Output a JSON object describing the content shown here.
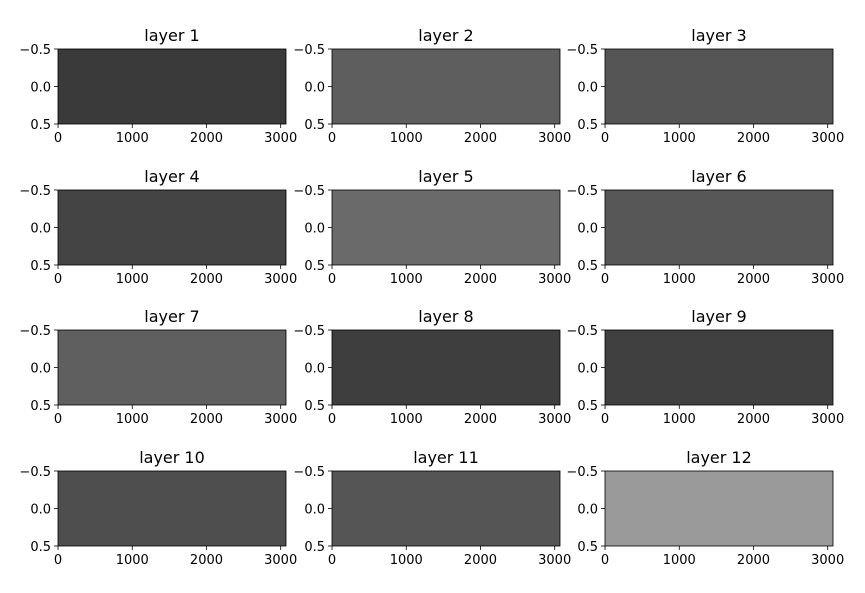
{
  "chart_data": [
    {
      "type": "heatmap",
      "title": "layer 1",
      "color": "#3a3a3a",
      "xlim": [
        -0.5,
        3071.5
      ],
      "ylim": [
        -0.5,
        0.5
      ],
      "y_inverted": true,
      "xticks": [
        0,
        1000,
        2000,
        3000
      ],
      "yticks": [
        {
          "value": -0.5,
          "label": "−0.5"
        },
        {
          "value": 0,
          "label": "0.0"
        },
        0.5
      ]
    },
    {
      "type": "heatmap",
      "title": "layer 2",
      "color": "#5e5e5e",
      "xlim": [
        -0.5,
        3071.5
      ],
      "ylim": [
        -0.5,
        0.5
      ],
      "y_inverted": true,
      "xticks": [
        0,
        1000,
        2000,
        3000
      ],
      "yticks": [
        {
          "value": -0.5,
          "label": "−0.5"
        },
        {
          "value": 0,
          "label": "0.0"
        },
        0.5
      ]
    },
    {
      "type": "heatmap",
      "title": "layer 3",
      "color": "#555555",
      "xlim": [
        -0.5,
        3071.5
      ],
      "ylim": [
        -0.5,
        0.5
      ],
      "y_inverted": true,
      "xticks": [
        0,
        1000,
        2000,
        3000
      ],
      "yticks": [
        {
          "value": -0.5,
          "label": "−0.5"
        },
        {
          "value": 0,
          "label": "0.0"
        },
        0.5
      ]
    },
    {
      "type": "heatmap",
      "title": "layer 4",
      "color": "#444444",
      "xlim": [
        -0.5,
        3071.5
      ],
      "ylim": [
        -0.5,
        0.5
      ],
      "y_inverted": true,
      "xticks": [
        0,
        1000,
        2000,
        3000
      ],
      "yticks": [
        {
          "value": -0.5,
          "label": "−0.5"
        },
        {
          "value": 0,
          "label": "0.0"
        },
        0.5
      ]
    },
    {
      "type": "heatmap",
      "title": "layer 5",
      "color": "#6a6a6a",
      "xlim": [
        -0.5,
        3071.5
      ],
      "ylim": [
        -0.5,
        0.5
      ],
      "y_inverted": true,
      "xticks": [
        0,
        1000,
        2000,
        3000
      ],
      "yticks": [
        {
          "value": -0.5,
          "label": "−0.5"
        },
        {
          "value": 0,
          "label": "0.0"
        },
        0.5
      ]
    },
    {
      "type": "heatmap",
      "title": "layer 6",
      "color": "#575757",
      "xlim": [
        -0.5,
        3071.5
      ],
      "ylim": [
        -0.5,
        0.5
      ],
      "y_inverted": true,
      "xticks": [
        0,
        1000,
        2000,
        3000
      ],
      "yticks": [
        {
          "value": -0.5,
          "label": "−0.5"
        },
        {
          "value": 0,
          "label": "0.0"
        },
        0.5
      ]
    },
    {
      "type": "heatmap",
      "title": "layer 7",
      "color": "#5f5f5f",
      "xlim": [
        -0.5,
        3071.5
      ],
      "ylim": [
        -0.5,
        0.5
      ],
      "y_inverted": true,
      "xticks": [
        0,
        1000,
        2000,
        3000
      ],
      "yticks": [
        {
          "value": -0.5,
          "label": "−0.5"
        },
        {
          "value": 0,
          "label": "0.0"
        },
        0.5
      ]
    },
    {
      "type": "heatmap",
      "title": "layer 8",
      "color": "#3e3e3e",
      "xlim": [
        -0.5,
        3071.5
      ],
      "ylim": [
        -0.5,
        0.5
      ],
      "y_inverted": true,
      "xticks": [
        0,
        1000,
        2000,
        3000
      ],
      "yticks": [
        {
          "value": -0.5,
          "label": "−0.5"
        },
        {
          "value": 0,
          "label": "0.0"
        },
        0.5
      ]
    },
    {
      "type": "heatmap",
      "title": "layer 9",
      "color": "#404040",
      "xlim": [
        -0.5,
        3071.5
      ],
      "ylim": [
        -0.5,
        0.5
      ],
      "y_inverted": true,
      "xticks": [
        0,
        1000,
        2000,
        3000
      ],
      "yticks": [
        {
          "value": -0.5,
          "label": "−0.5"
        },
        {
          "value": 0,
          "label": "0.0"
        },
        0.5
      ]
    },
    {
      "type": "heatmap",
      "title": "layer 10",
      "color": "#4e4e4e",
      "xlim": [
        -0.5,
        3071.5
      ],
      "ylim": [
        -0.5,
        0.5
      ],
      "y_inverted": true,
      "xticks": [
        0,
        1000,
        2000,
        3000
      ],
      "yticks": [
        {
          "value": -0.5,
          "label": "−0.5"
        },
        {
          "value": 0,
          "label": "0.0"
        },
        0.5
      ]
    },
    {
      "type": "heatmap",
      "title": "layer 11",
      "color": "#555555",
      "xlim": [
        -0.5,
        3071.5
      ],
      "ylim": [
        -0.5,
        0.5
      ],
      "y_inverted": true,
      "xticks": [
        0,
        1000,
        2000,
        3000
      ],
      "yticks": [
        {
          "value": -0.5,
          "label": "−0.5"
        },
        {
          "value": 0,
          "label": "0.0"
        },
        0.5
      ]
    },
    {
      "type": "heatmap",
      "title": "layer 12",
      "color": "#9a9a9a",
      "xlim": [
        -0.5,
        3071.5
      ],
      "ylim": [
        -0.5,
        0.5
      ],
      "y_inverted": true,
      "xticks": [
        0,
        1000,
        2000,
        3000
      ],
      "yticks": [
        {
          "value": -0.5,
          "label": "−0.5"
        },
        {
          "value": 0,
          "label": "0.0"
        },
        0.5
      ]
    }
  ]
}
